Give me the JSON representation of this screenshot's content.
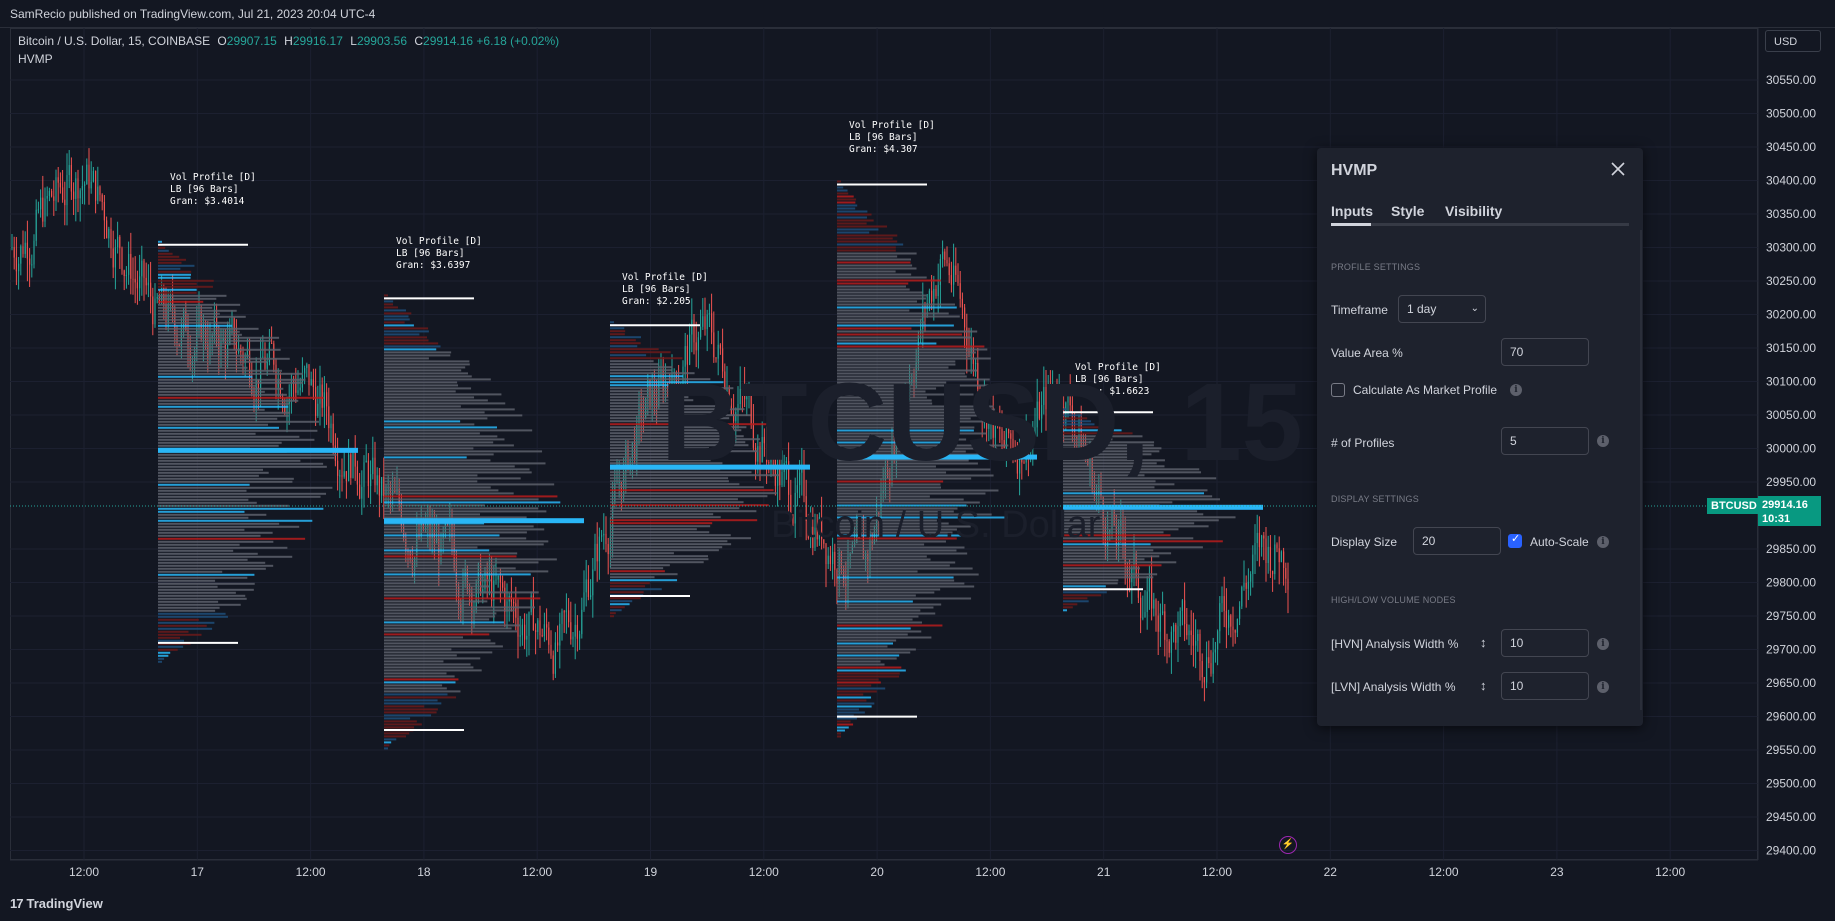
{
  "header": {
    "published": "SamRecio published on TradingView.com, Jul 21, 2023 20:04 UTC-4"
  },
  "legend": {
    "symbol": "Bitcoin / U.S. Dollar, 15, COINBASE",
    "o_label": "O",
    "o": "29907.15",
    "h_label": "H",
    "h": "29916.17",
    "l_label": "L",
    "l": "29903.56",
    "c_label": "C",
    "c": "29914.16",
    "change": "+6.18 (+0.02%)",
    "indicator": "HVMP"
  },
  "currency_button": "USD",
  "watermark": {
    "symbol": "BTCUSD, 15",
    "name": "Bitcoin / U.S. Dollar"
  },
  "price_axis": [
    "30550.00",
    "30500.00",
    "30450.00",
    "30400.00",
    "30350.00",
    "30300.00",
    "30250.00",
    "30200.00",
    "30150.00",
    "30100.00",
    "30050.00",
    "30000.00",
    "29950.00",
    "29850.00",
    "29800.00",
    "29750.00",
    "29700.00",
    "29650.00",
    "29600.00",
    "29550.00",
    "29500.00",
    "29450.00",
    "29400.00"
  ],
  "last_price": {
    "symbol": "BTCUSD",
    "price": "29914.16",
    "countdown": "10:31"
  },
  "time_axis": [
    "12:00",
    "17",
    "12:00",
    "18",
    "12:00",
    "19",
    "12:00",
    "20",
    "12:00",
    "21",
    "12:00",
    "22",
    "12:00",
    "23",
    "12:00"
  ],
  "profiles": [
    {
      "title": "Vol Profile [D]",
      "lb": "LB [96 Bars]",
      "gran": "Gran: $3.4014"
    },
    {
      "title": "Vol Profile [D]",
      "lb": "LB [96 Bars]",
      "gran": "Gran: $3.6397"
    },
    {
      "title": "Vol Profile [D]",
      "lb": "LB [96 Bars]",
      "gran": "Gran: $2.205"
    },
    {
      "title": "Vol Profile [D]",
      "lb": "LB [96 Bars]",
      "gran": "Gran: $4.307"
    },
    {
      "title": "Vol Profile [D]",
      "lb": "LB [96 Bars]",
      "gran": "Gran: $1.6623"
    }
  ],
  "panel": {
    "title": "HVMP",
    "tabs": [
      "Inputs",
      "Style",
      "Visibility"
    ],
    "profile_settings": "PROFILE SETTINGS",
    "timeframe_label": "Timeframe",
    "timeframe_value": "1 day",
    "value_area_label": "Value Area %",
    "value_area_value": "70",
    "market_profile_label": "Calculate As Market Profile",
    "profiles_label": "# of Profiles",
    "profiles_value": "5",
    "display_settings": "DISPLAY SETTINGS",
    "display_size_label": "Display Size",
    "display_size_value": "20",
    "auto_scale_label": "Auto-Scale",
    "hl_nodes": "HIGH/LOW VOLUME NODES",
    "hvn_label": "[HVN] Analysis Width %",
    "hvn_value": "10",
    "lvn_label": "[LVN]  Analysis Width %",
    "lvn_value": "10"
  },
  "footer": {
    "brand": "TradingView"
  },
  "colors": {
    "up": "#26a69a",
    "down": "#ef5350",
    "hvn": "#29b6f6",
    "lvn": "#b71c1c",
    "bg": "#131722"
  }
}
